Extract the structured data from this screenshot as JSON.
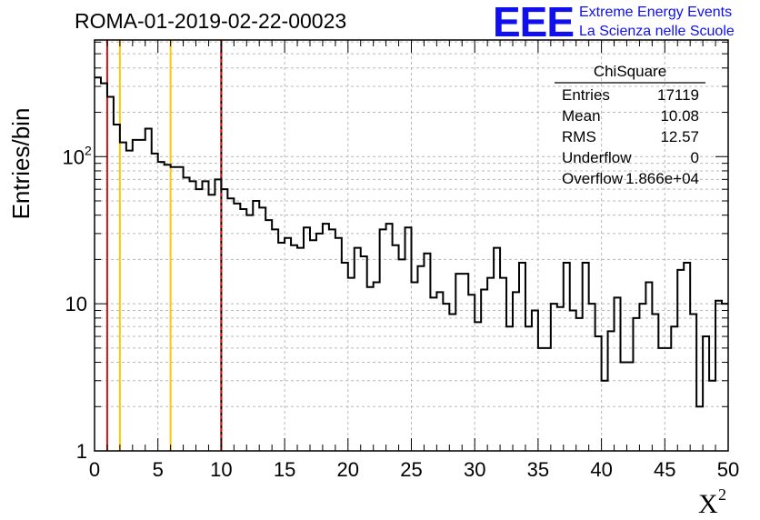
{
  "chart_data": {
    "type": "histogram",
    "title": "ROMA-01-2019-02-22-00023",
    "xlabel": "X",
    "xlabel_superscript": "2",
    "ylabel": "Entries/bin",
    "xlim": [
      0,
      50
    ],
    "ylim": [
      1,
      620
    ],
    "yscale": "log",
    "grid": true,
    "x_ticks": [
      "0",
      "5",
      "10",
      "15",
      "20",
      "25",
      "30",
      "35",
      "40",
      "45",
      "50"
    ],
    "y_ticks": [
      {
        "value": 1,
        "label": "1"
      },
      {
        "value": 10,
        "label": "10"
      },
      {
        "value": 100,
        "label": "10",
        "exponent": "2"
      }
    ],
    "bin_width": 0.5,
    "bin_start": 0,
    "values": [
      345,
      315,
      255,
      165,
      125,
      110,
      130,
      130,
      155,
      105,
      92,
      88,
      85,
      85,
      72,
      68,
      60,
      68,
      55,
      70,
      60,
      52,
      48,
      44,
      40,
      50,
      45,
      37,
      32,
      26,
      28,
      25,
      24,
      33,
      27,
      30,
      35,
      32,
      28,
      19,
      15,
      24,
      21,
      13,
      14,
      32,
      35,
      25,
      20,
      33,
      14,
      18,
      22,
      11,
      12,
      10,
      8.5,
      16,
      16,
      11.5,
      7.5,
      12.5,
      15,
      24,
      15,
      7,
      12,
      19,
      7,
      9,
      5,
      5,
      10,
      9.5,
      19,
      9,
      8,
      19,
      10,
      6,
      3,
      6.5,
      11,
      4,
      4,
      8,
      10,
      14,
      8.5,
      5,
      5,
      7,
      17,
      19,
      8.5,
      2,
      6,
      3,
      10.5,
      10
    ],
    "vertical_lines": [
      {
        "x": 1,
        "color": "#dd1111",
        "style": "solid"
      },
      {
        "x": 2,
        "color": "#ffc800",
        "style": "solid"
      },
      {
        "x": 6,
        "color": "#ffc800",
        "style": "solid"
      },
      {
        "x": 10,
        "color": "#dd1111",
        "style": "dashed"
      }
    ],
    "stats_box": {
      "title": "ChiSquare",
      "rows": [
        {
          "label": "Entries",
          "value": "17119"
        },
        {
          "label": "Mean",
          "value": "10.08"
        },
        {
          "label": "RMS",
          "value": "12.57"
        },
        {
          "label": "Underflow",
          "value": "0"
        },
        {
          "label": "Overflow",
          "value": "1.866e+04"
        }
      ]
    }
  },
  "logo": {
    "text": "EEE",
    "line1": "Extreme Energy Events",
    "line2": "La Scienza nelle Scuole",
    "color": "#1010ee"
  }
}
